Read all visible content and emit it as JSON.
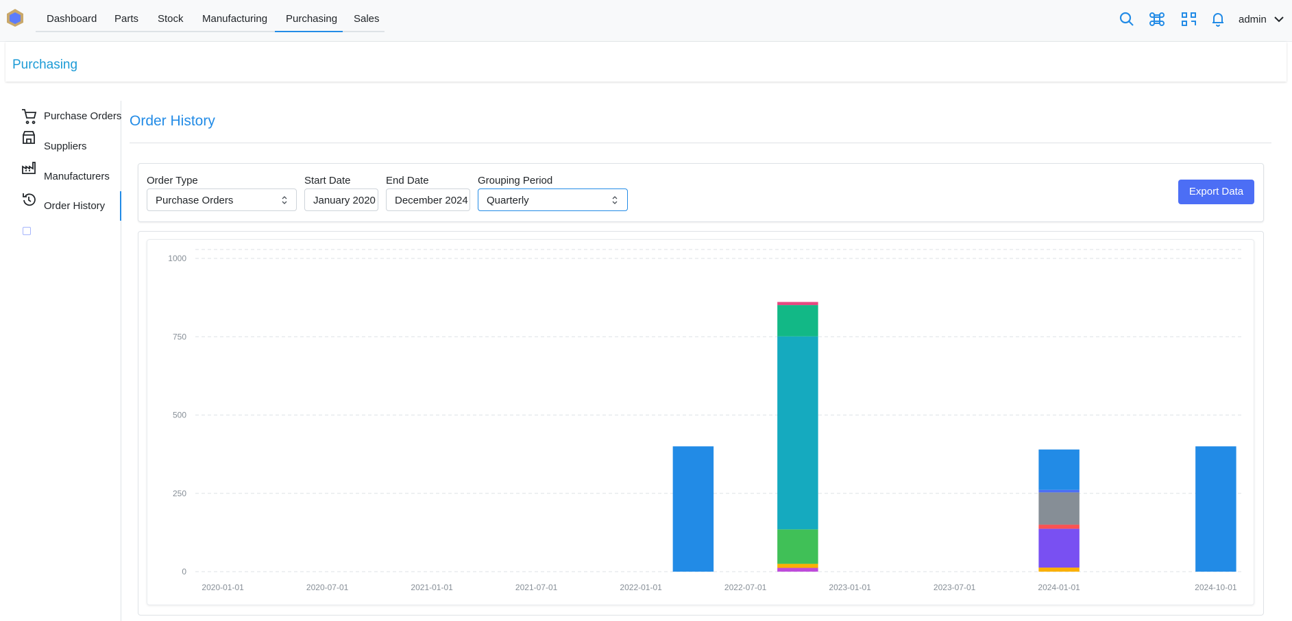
{
  "nav": {
    "items": [
      "Dashboard",
      "Parts",
      "Stock",
      "Manufacturing",
      "Purchasing",
      "Sales"
    ],
    "user": "admin"
  },
  "header": {
    "title": "Purchasing"
  },
  "sidebar": {
    "items": [
      "Purchase Orders",
      "Suppliers",
      "Manufacturers",
      "Order History"
    ]
  },
  "page": {
    "title": "Order History"
  },
  "filters": {
    "order_type": {
      "label": "Order Type",
      "value": "Purchase Orders"
    },
    "start_date": {
      "label": "Start Date",
      "value": "January 2020"
    },
    "end_date": {
      "label": "End Date",
      "value": "December 2024"
    },
    "grouping": {
      "label": "Grouping Period",
      "value": "Quarterly"
    },
    "export": "Export Data"
  },
  "chart_data": {
    "type": "stacked_bar",
    "categories": [
      "2020-01-01",
      null,
      "2020-07-01",
      null,
      "2021-01-01",
      null,
      "2021-07-01",
      null,
      "2022-01-01",
      null,
      "2022-07-01",
      null,
      "2023-01-01",
      null,
      "2023-07-01",
      null,
      "2024-01-01",
      null,
      null,
      "2024-10-01"
    ],
    "series": [
      {
        "color": "#be4bdb",
        "values": [
          0,
          0,
          0,
          0,
          0,
          0,
          0,
          0,
          0,
          0,
          0,
          12,
          0,
          0,
          0,
          0,
          0,
          0,
          0,
          0
        ]
      },
      {
        "color": "#fab005",
        "values": [
          0,
          0,
          0,
          0,
          0,
          0,
          0,
          0,
          0,
          0,
          0,
          13,
          0,
          0,
          0,
          0,
          13,
          0,
          0,
          0
        ]
      },
      {
        "color": "#40c057",
        "values": [
          0,
          0,
          0,
          0,
          0,
          0,
          0,
          0,
          0,
          0,
          0,
          110,
          0,
          0,
          0,
          0,
          0,
          0,
          0,
          0
        ]
      },
      {
        "color": "#7950f2",
        "values": [
          0,
          0,
          0,
          0,
          0,
          0,
          0,
          0,
          0,
          0,
          0,
          0,
          0,
          0,
          0,
          0,
          124,
          0,
          0,
          0
        ]
      },
      {
        "color": "#fa5252",
        "values": [
          0,
          0,
          0,
          0,
          0,
          0,
          0,
          0,
          0,
          0,
          0,
          0,
          0,
          0,
          0,
          0,
          13,
          0,
          0,
          0
        ]
      },
      {
        "color": "#868e96",
        "values": [
          0,
          0,
          0,
          0,
          0,
          0,
          0,
          0,
          0,
          0,
          0,
          0,
          0,
          0,
          0,
          0,
          103,
          0,
          0,
          0
        ]
      },
      {
        "color": "#15aabf",
        "values": [
          0,
          0,
          0,
          0,
          0,
          0,
          0,
          0,
          0,
          0,
          0,
          616,
          0,
          0,
          0,
          0,
          0,
          0,
          0,
          0
        ]
      },
      {
        "color": "#4c6ef5",
        "values": [
          0,
          0,
          0,
          0,
          0,
          0,
          0,
          0,
          0,
          0,
          0,
          0,
          0,
          0,
          0,
          0,
          8,
          0,
          0,
          0
        ]
      },
      {
        "color": "#12b886",
        "values": [
          0,
          0,
          0,
          0,
          0,
          0,
          0,
          0,
          0,
          0,
          0,
          100,
          0,
          0,
          0,
          0,
          0,
          0,
          0,
          0
        ]
      },
      {
        "color": "#e64980",
        "values": [
          0,
          0,
          0,
          0,
          0,
          0,
          0,
          0,
          0,
          0,
          0,
          10,
          0,
          0,
          0,
          0,
          0,
          0,
          0,
          0
        ]
      },
      {
        "color": "#228be6",
        "values": [
          0,
          0,
          0,
          0,
          0,
          0,
          0,
          0,
          0,
          400,
          0,
          0,
          0,
          0,
          0,
          0,
          129,
          0,
          0,
          400
        ]
      }
    ],
    "ylim": [
      0,
      1000
    ],
    "yticks": [
      0,
      250,
      500,
      750,
      1000
    ],
    "grid": true
  }
}
